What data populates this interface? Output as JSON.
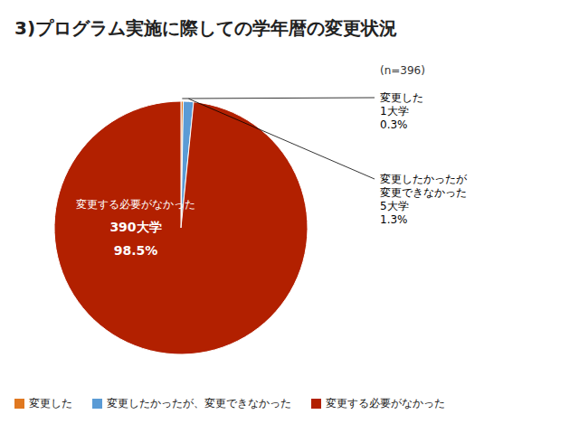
{
  "chart_data": {
    "type": "pie",
    "title": "3)プログラム実施に際しての学年暦の変更状況",
    "subtitle": "(n=396)",
    "categories": [
      "変更した",
      "変更したかったが、変更できなかった",
      "変更する必要がなかった"
    ],
    "values": [
      0.3,
      1.3,
      98.5
    ],
    "value_labels": [
      "0.3%",
      "1.3%",
      "98.5%"
    ],
    "counts": [
      1,
      5,
      390
    ],
    "count_labels": [
      "1大学",
      "5大学",
      "390大学"
    ],
    "slice_labels": [
      "変更した",
      "変更したかったが\n変更できなかった",
      "変更する必要がなかった"
    ],
    "colors": [
      "#E07820",
      "#5B9BD5",
      "#B22000"
    ],
    "data_labels": true,
    "legend": "bottom"
  }
}
